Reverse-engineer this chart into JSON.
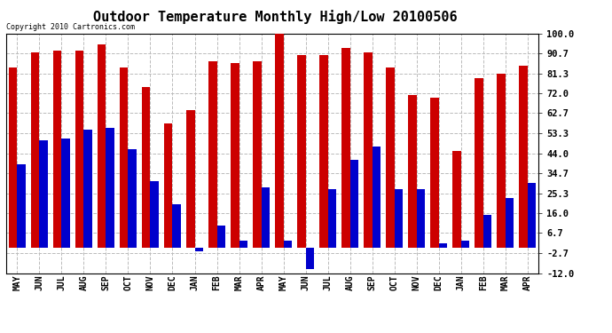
{
  "title": "Outdoor Temperature Monthly High/Low 20100506",
  "copyright": "Copyright 2010 Cartronics.com",
  "months": [
    "MAY",
    "JUN",
    "JUL",
    "AUG",
    "SEP",
    "OCT",
    "NOV",
    "DEC",
    "JAN",
    "FEB",
    "MAR",
    "APR",
    "MAY",
    "JUN",
    "JUL",
    "AUG",
    "SEP",
    "OCT",
    "NOV",
    "DEC",
    "JAN",
    "FEB",
    "MAR",
    "APR"
  ],
  "highs": [
    84,
    91,
    92,
    92,
    95,
    84,
    75,
    58,
    64,
    87,
    86,
    87,
    102,
    90,
    90,
    93,
    91,
    84,
    71,
    70,
    45,
    79,
    81,
    85
  ],
  "lows": [
    39,
    50,
    51,
    55,
    56,
    46,
    31,
    20,
    -2,
    10,
    3,
    28,
    3,
    -10,
    27,
    41,
    47,
    27,
    27,
    2,
    3,
    15,
    23,
    30
  ],
  "high_color": "#cc0000",
  "low_color": "#0000cc",
  "background_color": "#ffffff",
  "grid_color": "#bbbbbb",
  "yticks": [
    100.0,
    90.7,
    81.3,
    72.0,
    62.7,
    53.3,
    44.0,
    34.7,
    25.3,
    16.0,
    6.7,
    -2.7,
    -12.0
  ],
  "ylim": [
    -12.0,
    100.0
  ],
  "bar_width": 0.38,
  "title_fontsize": 11,
  "tick_fontsize": 7,
  "ytick_fontsize": 7.5
}
